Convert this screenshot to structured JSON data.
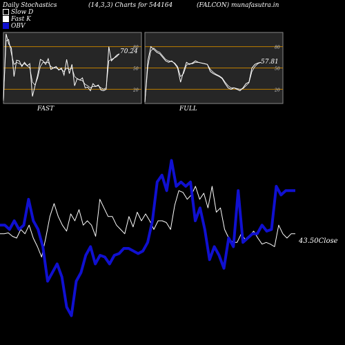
{
  "header": {
    "title_left": "Daily Stochastics",
    "title_mid": "(14,3,3) Charts for 544164",
    "title_right": "(FALCON) munafasutra.in"
  },
  "legend": [
    {
      "label": "Slow  D",
      "swatch": "#000000",
      "border": "#ffffff"
    },
    {
      "label": "Fast K",
      "swatch": "#ffffff",
      "border": "#ffffff"
    },
    {
      "label": "OBV",
      "swatch": "#1010d0",
      "border": "#1010d0"
    }
  ],
  "colors": {
    "panel_bg": "#262626",
    "level_line": "#c08000",
    "price_line": "#ffffff",
    "obv_line": "#1010d0"
  },
  "chart_data": [
    {
      "type": "line",
      "panel": "FAST",
      "label": "FAST",
      "ylim": [
        0,
        100
      ],
      "levels": [
        20,
        50,
        80
      ],
      "level_labels": [
        "20",
        "50",
        "80"
      ],
      "last_value_label": "70.24",
      "series": [
        {
          "name": "Fast K",
          "values": [
            6,
            98,
            84,
            78,
            38,
            61,
            60,
            52,
            58,
            53,
            56,
            10,
            25,
            40,
            62,
            60,
            55,
            63,
            48,
            50,
            52,
            47,
            50,
            40,
            62,
            42,
            55,
            25,
            35,
            33,
            36,
            22,
            23,
            18,
            28,
            24,
            26,
            19,
            18,
            20,
            80,
            60,
            64,
            68,
            70
          ]
        },
        {
          "name": "Slow  D",
          "values": [
            4,
            88,
            90,
            70,
            55,
            58,
            56,
            54,
            56,
            53,
            50,
            30,
            26,
            36,
            52,
            58,
            58,
            58,
            52,
            50,
            50,
            48,
            48,
            45,
            50,
            48,
            50,
            38,
            35,
            33,
            32,
            27,
            25,
            22,
            24,
            24,
            25,
            22,
            20,
            22,
            60,
            62,
            64,
            66,
            70
          ]
        }
      ]
    },
    {
      "type": "line",
      "panel": "FULL",
      "label": "FULL",
      "ylim": [
        0,
        100
      ],
      "levels": [
        20,
        50,
        80
      ],
      "level_labels": [
        "20",
        "50",
        "80"
      ],
      "last_value_label": "57.81",
      "series": [
        {
          "name": "Fast K",
          "values": [
            2,
            60,
            80,
            76,
            72,
            70,
            65,
            60,
            58,
            60,
            56,
            50,
            30,
            45,
            58,
            55,
            57,
            60,
            58,
            57,
            56,
            55,
            45,
            42,
            40,
            38,
            35,
            28,
            22,
            20,
            22,
            20,
            18,
            22,
            28,
            30,
            50,
            55,
            57,
            58
          ]
        },
        {
          "name": "Slow  D",
          "values": [
            2,
            52,
            74,
            78,
            74,
            72,
            67,
            62,
            60,
            59,
            57,
            52,
            38,
            42,
            54,
            56,
            56,
            58,
            58,
            57,
            56,
            55,
            48,
            44,
            41,
            39,
            36,
            30,
            25,
            22,
            22,
            21,
            20,
            21,
            25,
            29,
            45,
            52,
            56,
            58
          ]
        }
      ]
    },
    {
      "type": "line",
      "panel": "price-obv",
      "last_value_label": "43.50Close",
      "series": [
        {
          "name": "Close",
          "values": [
            43.5,
            43.5,
            43.6,
            43.2,
            43.0,
            44.0,
            43.5,
            44.5,
            43.0,
            42.0,
            40.8,
            43.0,
            45.5,
            47.0,
            45.5,
            44.5,
            43.8,
            45.8,
            45.0,
            46.3,
            44.5,
            45.0,
            44.5,
            43.2,
            47.5,
            46.5,
            45.5,
            45.5,
            44.5,
            44.0,
            43.5,
            45.5,
            44.3,
            46.0,
            45.0,
            45.8,
            45.0,
            44.0,
            45.0,
            45.0,
            44.8,
            44.0,
            46.8,
            48.5,
            48.3,
            47.5,
            48.0,
            49.0,
            47.5,
            48.2,
            46.5,
            49.0,
            46.0,
            46.5,
            44.0,
            43.0,
            42.5,
            42.5,
            43.5,
            42.8,
            43.3,
            43.8,
            43.0,
            42.3,
            42.5,
            42.3,
            42.0,
            44.5,
            43.5,
            43.0,
            43.5,
            43.5
          ]
        },
        {
          "name": "OBV",
          "values": [
            44.5,
            44.5,
            44.0,
            45.0,
            44.0,
            44.5,
            47.5,
            45.0,
            44.0,
            42.0,
            38.0,
            39.0,
            40.0,
            38.5,
            35.0,
            34.0,
            38.0,
            39.0,
            41.0,
            42.0,
            40.0,
            41.0,
            40.8,
            40.0,
            41.0,
            41.2,
            41.8,
            41.8,
            41.5,
            41.2,
            41.5,
            42.5,
            45.0,
            49.5,
            50.3,
            48.5,
            52.0,
            49.0,
            49.5,
            49.0,
            49.5,
            45.0,
            46.5,
            44.0,
            40.5,
            42.0,
            41.0,
            39.5,
            43.0,
            42.0,
            48.5,
            42.5,
            43.0,
            43.5,
            43.5,
            44.5,
            43.8,
            44.0,
            49.0,
            48.0,
            48.5,
            48.5,
            48.5
          ]
        }
      ]
    }
  ]
}
